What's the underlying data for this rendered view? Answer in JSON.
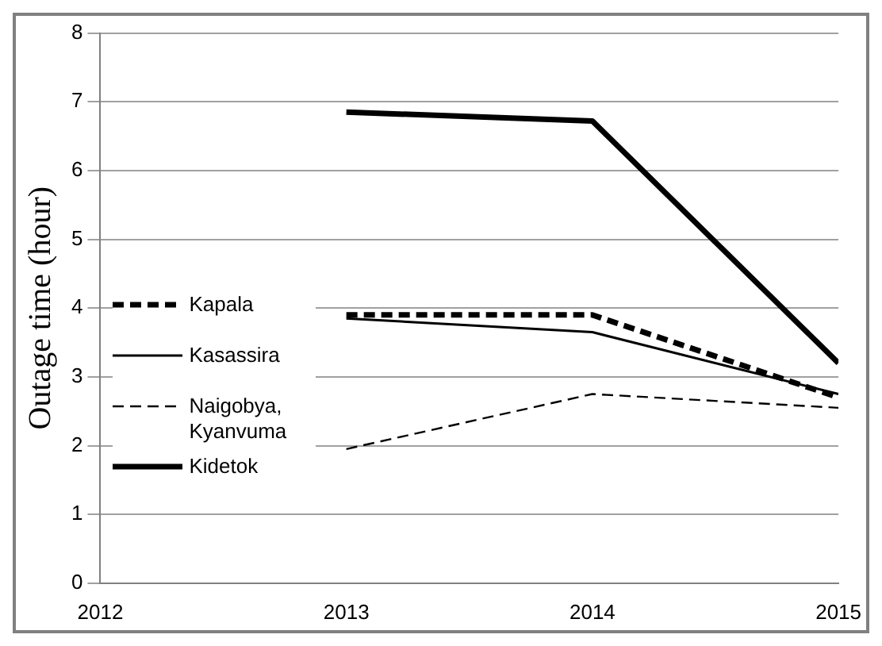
{
  "chart_data": {
    "type": "line",
    "ylabel": "Outage time (hour)",
    "x": [
      2013,
      2014,
      2015
    ],
    "xlim": [
      2012,
      2015
    ],
    "xticks": [
      2012,
      2013,
      2014,
      2015
    ],
    "ylim": [
      0,
      8
    ],
    "yticks": [
      0,
      1,
      2,
      3,
      4,
      5,
      6,
      7,
      8
    ],
    "grid": "y",
    "legend": "left",
    "marker": "none",
    "series": [
      {
        "name": "Kapala",
        "color": "#000000",
        "line_style": "dashed",
        "values": [
          3.9,
          3.9,
          2.7
        ]
      },
      {
        "name": "Kasassira",
        "color": "#000000",
        "line_style": "solid",
        "values": [
          3.85,
          3.65,
          2.75
        ]
      },
      {
        "name": "Naigobya, Kyanvuma",
        "color": "#000000",
        "line_style": "dashed",
        "values": [
          1.95,
          2.75,
          2.55
        ]
      },
      {
        "name": "Kidetok",
        "color": "#000000",
        "line_style": "solid",
        "values": [
          6.85,
          6.72,
          3.2
        ]
      }
    ]
  }
}
